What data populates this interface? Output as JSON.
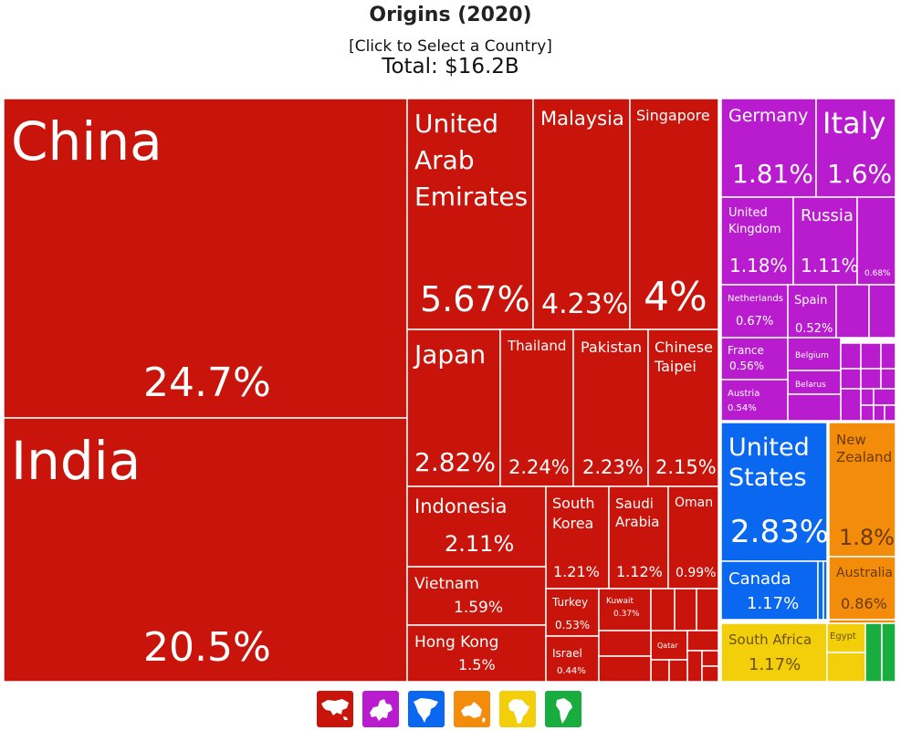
{
  "header": {
    "title": "Origins (2020)",
    "select_label": "[Click to Select a Country]",
    "total": "Total: $16.2B"
  },
  "colors": {
    "asia": "#c8140b",
    "europe": "#b91bce",
    "north_america": "#0a67f0",
    "oceania": "#f28c0a",
    "africa": "#f2cf0a",
    "south_america": "#19ad3f"
  },
  "legend": [
    {
      "name": "Asia",
      "icon": "asia-map-icon",
      "color": "#c8140b"
    },
    {
      "name": "Europe",
      "icon": "europe-map-icon",
      "color": "#b91bce"
    },
    {
      "name": "North America",
      "icon": "north-america-map-icon",
      "color": "#0a67f0"
    },
    {
      "name": "Oceania",
      "icon": "oceania-map-icon",
      "color": "#f28c0a"
    },
    {
      "name": "Africa",
      "icon": "africa-map-icon",
      "color": "#f2cf0a"
    },
    {
      "name": "South America",
      "icon": "south-america-map-icon",
      "color": "#19ad3f"
    }
  ],
  "chart_data": {
    "type": "treemap",
    "title": "Origins (2020)",
    "total": "$16.2B",
    "unit": "% of total",
    "items": [
      {
        "name": "China",
        "value": 24.7,
        "label": "24.7%",
        "group": "asia"
      },
      {
        "name": "India",
        "value": 20.5,
        "label": "20.5%",
        "group": "asia"
      },
      {
        "name": "United Arab Emirates",
        "value": 5.67,
        "label": "5.67%",
        "group": "asia"
      },
      {
        "name": "Malaysia",
        "value": 4.23,
        "label": "4.23%",
        "group": "asia"
      },
      {
        "name": "Singapore",
        "value": 4.0,
        "label": "4%",
        "group": "asia"
      },
      {
        "name": "Japan",
        "value": 2.82,
        "label": "2.82%",
        "group": "asia"
      },
      {
        "name": "Thailand",
        "value": 2.24,
        "label": "2.24%",
        "group": "asia"
      },
      {
        "name": "Pakistan",
        "value": 2.23,
        "label": "2.23%",
        "group": "asia"
      },
      {
        "name": "Chinese Taipei",
        "value": 2.15,
        "label": "2.15%",
        "group": "asia"
      },
      {
        "name": "Indonesia",
        "value": 2.11,
        "label": "2.11%",
        "group": "asia"
      },
      {
        "name": "South Korea",
        "value": 1.21,
        "label": "1.21%",
        "group": "asia"
      },
      {
        "name": "Saudi Arabia",
        "value": 1.12,
        "label": "1.12%",
        "group": "asia"
      },
      {
        "name": "Oman",
        "value": 0.99,
        "label": "0.99%",
        "group": "asia"
      },
      {
        "name": "Vietnam",
        "value": 1.59,
        "label": "1.59%",
        "group": "asia"
      },
      {
        "name": "Hong Kong",
        "value": 1.5,
        "label": "1.5%",
        "group": "asia"
      },
      {
        "name": "Turkey",
        "value": 0.53,
        "label": "0.53%",
        "group": "asia"
      },
      {
        "name": "Kuwait",
        "value": 0.37,
        "label": "0.37%",
        "group": "asia"
      },
      {
        "name": "Israel",
        "value": 0.44,
        "label": "0.44%",
        "group": "asia"
      },
      {
        "name": "Qatar",
        "value": null,
        "label": "",
        "group": "asia"
      },
      {
        "name": "Germany",
        "value": 1.81,
        "label": "1.81%",
        "group": "europe"
      },
      {
        "name": "Italy",
        "value": 1.6,
        "label": "1.6%",
        "group": "europe"
      },
      {
        "name": "United Kingdom",
        "value": 1.18,
        "label": "1.18%",
        "group": "europe"
      },
      {
        "name": "Russia",
        "value": 1.11,
        "label": "1.11%",
        "group": "europe"
      },
      {
        "name": "",
        "value": 0.68,
        "label": "0.68%",
        "group": "europe"
      },
      {
        "name": "Netherlands",
        "value": 0.67,
        "label": "0.67%",
        "group": "europe"
      },
      {
        "name": "Spain",
        "value": 0.52,
        "label": "0.52%",
        "group": "europe"
      },
      {
        "name": "France",
        "value": 0.56,
        "label": "0.56%",
        "group": "europe"
      },
      {
        "name": "Belgium",
        "value": null,
        "label": "",
        "group": "europe"
      },
      {
        "name": "Belarus",
        "value": null,
        "label": "",
        "group": "europe"
      },
      {
        "name": "Austria",
        "value": 0.54,
        "label": "0.54%",
        "group": "europe"
      },
      {
        "name": "United States",
        "value": 2.83,
        "label": "2.83%",
        "group": "north_america"
      },
      {
        "name": "Canada",
        "value": 1.17,
        "label": "1.17%",
        "group": "north_america"
      },
      {
        "name": "New Zealand",
        "value": 1.8,
        "label": "1.8%",
        "group": "oceania"
      },
      {
        "name": "Australia",
        "value": 0.86,
        "label": "0.86%",
        "group": "oceania"
      },
      {
        "name": "South Africa",
        "value": 1.17,
        "label": "1.17%",
        "group": "africa"
      },
      {
        "name": "Egypt",
        "value": null,
        "label": "",
        "group": "africa"
      }
    ]
  }
}
